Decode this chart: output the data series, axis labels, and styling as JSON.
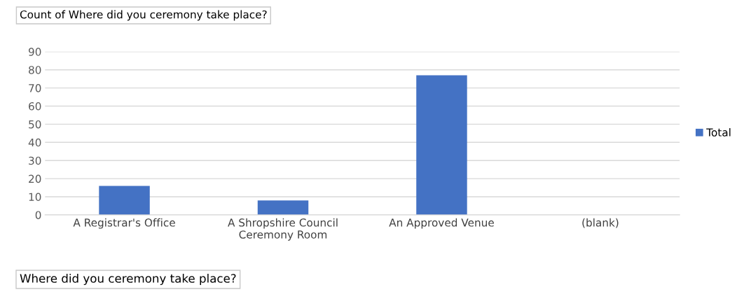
{
  "chart_data": {
    "type": "bar",
    "title": "Count of Where did you ceremony take place?",
    "xlabel": "Where did you ceremony take place?",
    "categories": [
      "A Registrar's Office",
      "A Shropshire Council\nCeremony Room",
      "An Approved Venue",
      "(blank)"
    ],
    "series": [
      {
        "name": "Total",
        "color": "#4472c4",
        "values": [
          16,
          8,
          77,
          null
        ]
      }
    ],
    "ylim": [
      0,
      90
    ],
    "yticks": [
      0,
      10,
      20,
      30,
      40,
      50,
      60,
      70,
      80,
      90
    ],
    "grid": "y",
    "legend": "right"
  }
}
